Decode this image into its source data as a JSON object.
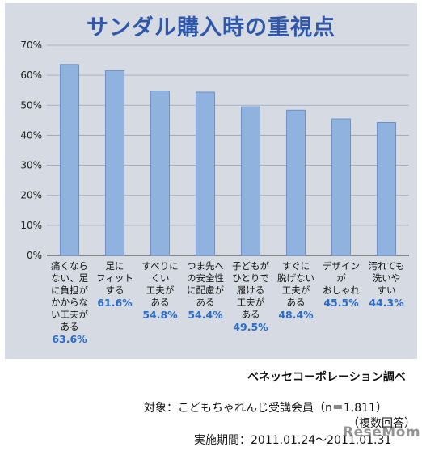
{
  "chart_data": {
    "type": "bar",
    "title": "サンダル購入時の重視点",
    "categories": [
      [
        "痛くなら",
        "ない、足",
        "に負担が",
        "かからな",
        "い工夫が",
        "ある"
      ],
      [
        "足に",
        "フィット",
        "する"
      ],
      [
        "すべりに",
        "くい",
        "工夫が",
        "ある"
      ],
      [
        "つま先へ",
        "の安全性",
        "に配慮が",
        "ある"
      ],
      [
        "子どもが",
        "ひとりで",
        "履ける",
        "工夫が",
        "ある"
      ],
      [
        "すぐに",
        "脱げない",
        "工夫が",
        "ある"
      ],
      [
        "デザイン",
        "が",
        "おしゃれ"
      ],
      [
        "汚れても",
        "洗いや",
        "すい"
      ]
    ],
    "values": [
      63.6,
      61.6,
      54.8,
      54.4,
      49.5,
      48.4,
      45.5,
      44.3
    ],
    "value_labels": [
      "63.6%",
      "61.6%",
      "54.8%",
      "54.4%",
      "49.5%",
      "48.4%",
      "45.5%",
      "44.3%"
    ],
    "ylim": [
      0,
      70
    ],
    "yticks": [
      "0%",
      "10%",
      "20%",
      "30%",
      "40%",
      "50%",
      "60%",
      "70%"
    ],
    "grid": true,
    "bar_color": "#8fb2df",
    "bar_edge_color": "#5f86bd",
    "value_color": "#2a6cc9",
    "title_color": "#2f58ad"
  },
  "credits": {
    "source": "ベネッセコーポレーション調べ",
    "subject": "対象：こどもちゃれんじ受講会員（n＝1,811）",
    "multi_answer": "（複数回答）",
    "period": "実施期間：2011.01.24〜2011.01.31"
  },
  "watermark": "ReseMom"
}
